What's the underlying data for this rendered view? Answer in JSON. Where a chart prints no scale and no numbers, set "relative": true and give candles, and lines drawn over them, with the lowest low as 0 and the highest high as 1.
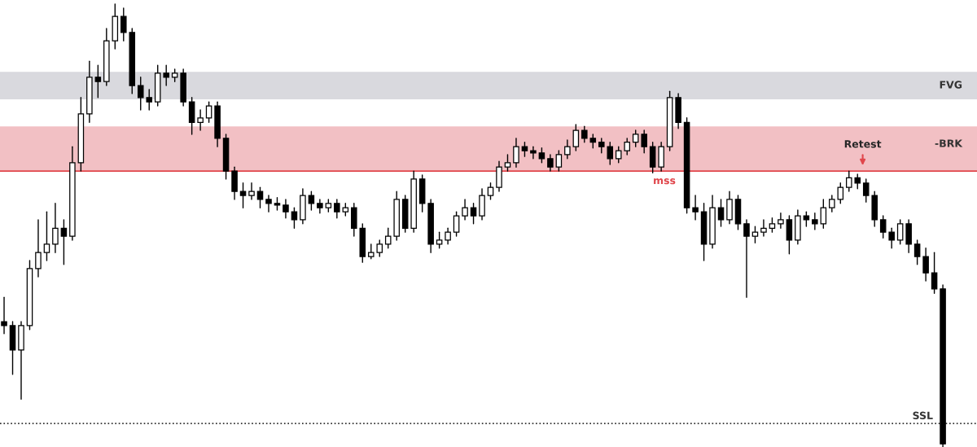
{
  "chart_data": {
    "type": "candlestick",
    "relative": true,
    "categories": [
      null,
      null,
      null,
      null,
      null,
      null,
      null,
      null,
      null,
      null,
      null,
      null,
      null,
      null,
      null,
      null,
      null,
      null,
      null,
      null,
      null,
      null,
      null,
      null,
      null,
      null,
      null,
      null,
      null,
      null,
      null,
      null,
      null,
      null,
      null,
      null,
      null,
      null,
      null,
      null,
      null,
      null,
      null,
      null,
      null,
      null,
      null,
      null,
      null,
      null,
      null,
      null,
      null,
      null,
      null,
      null,
      null,
      null,
      null,
      null,
      null,
      null,
      null,
      null,
      null,
      null,
      null,
      null,
      null,
      null,
      null,
      null,
      null,
      null,
      null,
      null,
      null,
      null,
      null,
      null,
      null,
      null,
      null,
      null,
      null,
      null,
      null,
      null,
      null,
      null,
      null,
      null,
      null,
      null,
      null,
      null,
      null,
      null,
      null,
      null,
      null,
      null,
      null,
      null,
      null,
      null,
      null,
      null,
      null,
      null,
      null
    ],
    "ohlc": [
      [
        0.283,
        0.338,
        0.256,
        0.274
      ],
      [
        0.274,
        0.283,
        0.164,
        0.219
      ],
      [
        0.219,
        0.283,
        0.108,
        0.274
      ],
      [
        0.274,
        0.421,
        0.265,
        0.403
      ],
      [
        0.403,
        0.513,
        0.384,
        0.439
      ],
      [
        0.439,
        0.531,
        0.421,
        0.458
      ],
      [
        0.458,
        0.55,
        0.439,
        0.494
      ],
      [
        0.494,
        0.513,
        0.412,
        0.476
      ],
      [
        0.476,
        0.678,
        0.467,
        0.642
      ],
      [
        0.642,
        0.789,
        0.623,
        0.752
      ],
      [
        0.752,
        0.871,
        0.733,
        0.835
      ],
      [
        0.835,
        0.862,
        0.789,
        0.825
      ],
      [
        0.825,
        0.945,
        0.816,
        0.917
      ],
      [
        0.917,
        1.0,
        0.899,
        0.972
      ],
      [
        0.972,
        0.991,
        0.917,
        0.936
      ],
      [
        0.936,
        0.945,
        0.798,
        0.816
      ],
      [
        0.816,
        0.835,
        0.761,
        0.789
      ],
      [
        0.789,
        0.807,
        0.761,
        0.779
      ],
      [
        0.779,
        0.862,
        0.77,
        0.844
      ],
      [
        0.844,
        0.862,
        0.816,
        0.835
      ],
      [
        0.835,
        0.853,
        0.825,
        0.844
      ],
      [
        0.844,
        0.853,
        0.77,
        0.779
      ],
      [
        0.779,
        0.789,
        0.706,
        0.733
      ],
      [
        0.733,
        0.761,
        0.715,
        0.743
      ],
      [
        0.743,
        0.779,
        0.733,
        0.77
      ],
      [
        0.77,
        0.779,
        0.678,
        0.697
      ],
      [
        0.697,
        0.706,
        0.605,
        0.623
      ],
      [
        0.623,
        0.632,
        0.559,
        0.577
      ],
      [
        0.577,
        0.596,
        0.54,
        0.568
      ],
      [
        0.568,
        0.596,
        0.559,
        0.577
      ],
      [
        0.577,
        0.586,
        0.54,
        0.559
      ],
      [
        0.559,
        0.568,
        0.531,
        0.55
      ],
      [
        0.55,
        0.563,
        0.535,
        0.546
      ],
      [
        0.546,
        0.559,
        0.517,
        0.531
      ],
      [
        0.531,
        0.54,
        0.494,
        0.513
      ],
      [
        0.513,
        0.583,
        0.504,
        0.568
      ],
      [
        0.568,
        0.577,
        0.535,
        0.55
      ],
      [
        0.55,
        0.559,
        0.528,
        0.54
      ],
      [
        0.54,
        0.559,
        0.531,
        0.55
      ],
      [
        0.55,
        0.559,
        0.517,
        0.531
      ],
      [
        0.531,
        0.55,
        0.522,
        0.54
      ],
      [
        0.54,
        0.55,
        0.476,
        0.494
      ],
      [
        0.494,
        0.504,
        0.417,
        0.43
      ],
      [
        0.43,
        0.458,
        0.425,
        0.439
      ],
      [
        0.439,
        0.467,
        0.43,
        0.458
      ],
      [
        0.458,
        0.494,
        0.449,
        0.476
      ],
      [
        0.476,
        0.577,
        0.467,
        0.559
      ],
      [
        0.559,
        0.568,
        0.485,
        0.494
      ],
      [
        0.494,
        0.623,
        0.485,
        0.605
      ],
      [
        0.605,
        0.614,
        0.531,
        0.55
      ],
      [
        0.55,
        0.559,
        0.439,
        0.458
      ],
      [
        0.458,
        0.485,
        0.449,
        0.467
      ],
      [
        0.467,
        0.494,
        0.458,
        0.485
      ],
      [
        0.485,
        0.531,
        0.476,
        0.522
      ],
      [
        0.522,
        0.559,
        0.513,
        0.54
      ],
      [
        0.54,
        0.55,
        0.504,
        0.522
      ],
      [
        0.522,
        0.583,
        0.513,
        0.568
      ],
      [
        0.568,
        0.596,
        0.559,
        0.586
      ],
      [
        0.586,
        0.645,
        0.577,
        0.632
      ],
      [
        0.632,
        0.66,
        0.623,
        0.642
      ],
      [
        0.642,
        0.697,
        0.632,
        0.678
      ],
      [
        0.678,
        0.688,
        0.656,
        0.669
      ],
      [
        0.669,
        0.678,
        0.651,
        0.664
      ],
      [
        0.664,
        0.675,
        0.642,
        0.651
      ],
      [
        0.651,
        0.66,
        0.623,
        0.632
      ],
      [
        0.632,
        0.669,
        0.623,
        0.66
      ],
      [
        0.66,
        0.693,
        0.651,
        0.678
      ],
      [
        0.678,
        0.728,
        0.669,
        0.715
      ],
      [
        0.715,
        0.724,
        0.688,
        0.697
      ],
      [
        0.697,
        0.706,
        0.675,
        0.688
      ],
      [
        0.688,
        0.697,
        0.664,
        0.678
      ],
      [
        0.678,
        0.688,
        0.638,
        0.651
      ],
      [
        0.651,
        0.678,
        0.642,
        0.669
      ],
      [
        0.669,
        0.697,
        0.66,
        0.688
      ],
      [
        0.688,
        0.715,
        0.678,
        0.706
      ],
      [
        0.706,
        0.715,
        0.664,
        0.678
      ],
      [
        0.678,
        0.688,
        0.619,
        0.632
      ],
      [
        0.632,
        0.688,
        0.623,
        0.678
      ],
      [
        0.678,
        0.803,
        0.669,
        0.789
      ],
      [
        0.789,
        0.798,
        0.719,
        0.733
      ],
      [
        0.733,
        0.743,
        0.528,
        0.54
      ],
      [
        0.54,
        0.568,
        0.513,
        0.531
      ],
      [
        0.531,
        0.55,
        0.421,
        0.458
      ],
      [
        0.458,
        0.568,
        0.449,
        0.54
      ],
      [
        0.54,
        0.559,
        0.498,
        0.513
      ],
      [
        0.513,
        0.577,
        0.504,
        0.559
      ],
      [
        0.559,
        0.568,
        0.491,
        0.504
      ],
      [
        0.504,
        0.513,
        0.338,
        0.476
      ],
      [
        0.476,
        0.498,
        0.461,
        0.485
      ],
      [
        0.485,
        0.513,
        0.476,
        0.494
      ],
      [
        0.494,
        0.517,
        0.485,
        0.504
      ],
      [
        0.504,
        0.528,
        0.494,
        0.513
      ],
      [
        0.513,
        0.522,
        0.436,
        0.467
      ],
      [
        0.467,
        0.535,
        0.458,
        0.522
      ],
      [
        0.522,
        0.531,
        0.498,
        0.513
      ],
      [
        0.513,
        0.528,
        0.491,
        0.504
      ],
      [
        0.504,
        0.559,
        0.494,
        0.54
      ],
      [
        0.54,
        0.568,
        0.531,
        0.559
      ],
      [
        0.559,
        0.596,
        0.55,
        0.586
      ],
      [
        0.586,
        0.623,
        0.577,
        0.608
      ],
      [
        0.608,
        0.616,
        0.583,
        0.596
      ],
      [
        0.596,
        0.605,
        0.553,
        0.568
      ],
      [
        0.568,
        0.577,
        0.498,
        0.513
      ],
      [
        0.513,
        0.522,
        0.472,
        0.485
      ],
      [
        0.485,
        0.494,
        0.449,
        0.467
      ],
      [
        0.467,
        0.513,
        0.458,
        0.504
      ],
      [
        0.504,
        0.513,
        0.439,
        0.458
      ],
      [
        0.458,
        0.467,
        0.412,
        0.43
      ],
      [
        0.43,
        0.449,
        0.375,
        0.393
      ],
      [
        0.393,
        0.439,
        0.347,
        0.357
      ],
      [
        0.357,
        0.366,
        0.0,
        0.007
      ]
    ],
    "bands": [
      {
        "axis": "y",
        "from": 0.785,
        "to": 0.847,
        "label": "FVG",
        "color": "#d9d9de"
      },
      {
        "axis": "y",
        "from": 0.623,
        "to": 0.724,
        "label": "-BRK",
        "color": "#f2c0c4"
      }
    ],
    "ref_lines": [
      {
        "axis": "y",
        "value": 0.053,
        "label": "SSL",
        "color": "#333333",
        "line_style": "dotted"
      },
      {
        "axis": "y",
        "value": 0.623,
        "label": "mss",
        "color": "#e0474c",
        "line_style": "solid"
      }
    ],
    "annotations": [
      "Retest"
    ]
  }
}
